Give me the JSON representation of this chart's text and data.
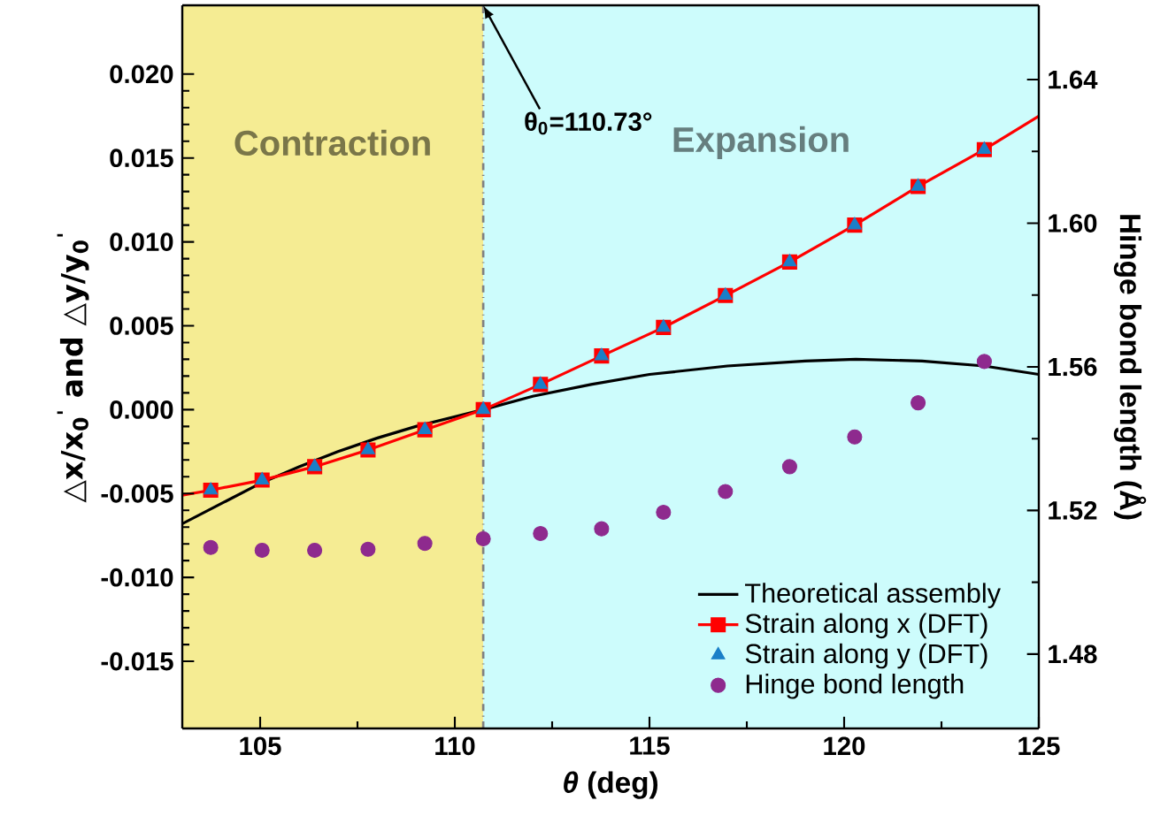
{
  "chart_data": {
    "type": "line",
    "xlabel": "*θ* (deg)",
    "ylabel": "△x/x$_{0}$$^{'}$ and △y/y$_{0}$$^{'}$",
    "y2label": "Hinge bond length (Å)",
    "xlim": [
      103,
      125
    ],
    "xticks": [
      105,
      110,
      115,
      120,
      125
    ],
    "ylim": [
      -0.019,
      0.0241
    ],
    "yticks": [
      {
        "value": -0.015,
        "label": "-0.015"
      },
      {
        "value": -0.01,
        "label": "-0.010"
      },
      {
        "value": -0.005,
        "label": "-0.005"
      },
      {
        "value": 0,
        "label": "0.000"
      },
      {
        "value": 0.005,
        "label": "0.005"
      },
      {
        "value": 0.01,
        "label": "0.010"
      },
      {
        "value": 0.015,
        "label": "0.015"
      },
      {
        "value": 0.02,
        "label": "0.020"
      }
    ],
    "y2lim": [
      1.4593,
      1.6607
    ],
    "y2ticks": [
      1.48,
      1.52,
      1.56,
      {
        "value": 1.6,
        "label": "1.60"
      },
      1.64
    ],
    "grid": false,
    "legend": "bottom right",
    "bands": [
      {
        "axis": "x",
        "from": 103,
        "to": 110.73,
        "label": "Contraction",
        "color": "#f5ec93"
      },
      {
        "axis": "x",
        "from": 110.73,
        "to": 125,
        "label": "Expansion",
        "color": "#cdfcfc"
      }
    ],
    "ref_lines": [
      {
        "axis": "x",
        "value": 110.73,
        "label": "θ$_{0}$=110.73°",
        "color": "#808080",
        "line_style": "dashed"
      }
    ],
    "series": [
      {
        "name": "Theoretical assembly",
        "color": "#000000",
        "x": [
          103,
          104,
          105,
          106,
          107,
          108,
          109,
          110.73,
          112,
          113.5,
          115,
          117,
          119,
          120.3,
          122,
          123.6,
          125
        ],
        "values": [
          -0.0068,
          -0.0056,
          -0.0044,
          -0.0034,
          -0.0025,
          -0.0017,
          -0.001,
          0.0,
          0.0008,
          0.0015,
          0.0021,
          0.0026,
          0.0029,
          0.003,
          0.0029,
          0.0026,
          0.0021
        ]
      },
      {
        "color": "#ff0000",
        "x": [
          103,
          103.73,
          113.77,
          123.6,
          125
        ],
        "values": [
          -0.0051,
          -0.0048,
          null,
          0.0155,
          0.0175
        ]
      },
      {
        "name": "Strain along x (DFT)",
        "color": "#ff0000",
        "marker": "square",
        "x": [
          103.73,
          105.05,
          106.4,
          107.77,
          109.23,
          110.73,
          112.2,
          113.77,
          115.36,
          116.95,
          118.6,
          120.27,
          121.9,
          123.6
        ],
        "values": [
          -0.0048,
          -0.0042,
          -0.0034,
          -0.0024,
          -0.0012,
          0.0,
          0.0015,
          0.0032,
          0.0049,
          0.0068,
          0.0088,
          0.011,
          0.0133,
          0.0155
        ]
      },
      {
        "name": "Strain along y (DFT)",
        "type": "scatter",
        "color": "#1a7fc8",
        "marker": "triangle",
        "x": [
          103.73,
          105.05,
          106.4,
          107.77,
          109.23,
          110.73,
          112.2,
          113.77,
          115.36,
          116.95,
          118.6,
          120.27,
          121.9,
          123.6
        ],
        "values": [
          -0.0048,
          -0.0042,
          -0.0034,
          -0.0024,
          -0.0012,
          0.0,
          0.0015,
          0.0032,
          0.0049,
          0.0068,
          0.0088,
          0.011,
          0.0133,
          0.0155
        ]
      },
      {
        "name": "Hinge bond length",
        "type": "scatter",
        "axis": "y2",
        "color": "#8e2a8e",
        "marker": "circle",
        "x": [
          103.73,
          105.05,
          106.4,
          107.77,
          109.23,
          110.73,
          112.2,
          113.77,
          115.36,
          116.95,
          118.6,
          120.27,
          121.9,
          123.6
        ],
        "values": [
          1.5097,
          1.5089,
          1.5089,
          1.5092,
          1.5108,
          1.5121,
          1.5136,
          1.5149,
          1.5195,
          1.5253,
          1.5322,
          1.5405,
          1.55,
          1.5615
        ]
      }
    ]
  }
}
